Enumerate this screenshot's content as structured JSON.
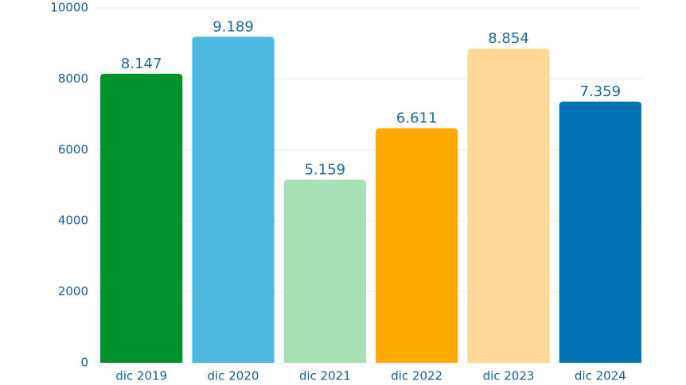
{
  "chart_data": {
    "type": "bar",
    "categories": [
      "dic 2019",
      "dic 2020",
      "dic 2021",
      "dic 2022",
      "dic 2023",
      "dic 2024"
    ],
    "values": [
      8147,
      9189,
      5159,
      6611,
      8854,
      7359
    ],
    "value_labels": [
      "8.147",
      "9.189",
      "5.159",
      "6.611",
      "8.854",
      "7.359"
    ],
    "colors": [
      "#00922f",
      "#4db8e0",
      "#a6e0b4",
      "#ffaa00",
      "#fdd896",
      "#0072b5"
    ],
    "ylim": [
      0,
      10000
    ],
    "yticks": [
      0,
      2000,
      4000,
      6000,
      8000,
      10000
    ],
    "grid": true
  }
}
